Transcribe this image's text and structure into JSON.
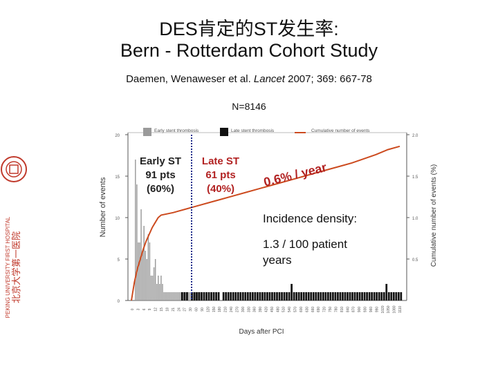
{
  "header": {
    "title_line1": "DES肯定的ST发生率:",
    "title_line2": "Bern - Rotterdam Cohort Study",
    "citation_authors": "Daemen, Wenaweser et al. ",
    "citation_journal": "Lancet",
    "citation_rest": " 2007; 369: 667-78",
    "n_label": "N=8146"
  },
  "sidebar": {
    "logo": "peking-university-seal",
    "vertical_text": "PEKING UNIVERSITY FIRST HOSPITAL",
    "vertical_chinese": "北京大学第一医院"
  },
  "annotations": {
    "early_st": [
      "Early ST",
      "91 pts",
      "(60%)"
    ],
    "late_st": [
      "Late ST",
      "61 pts",
      "(40%)"
    ],
    "rate": "0.6% / year",
    "incidence_title": "Incidence density:",
    "incidence_value_1": "1.3 / 100 patient",
    "incidence_value_2": "years"
  },
  "colors": {
    "early_bar": "#9a9a9a",
    "late_bar": "#111111",
    "cumulative_line": "#cc4a1e",
    "annotation_red": "#b22222",
    "dotted_divider": "#1a2a8a",
    "chart_text": "#555555"
  },
  "chart_data": {
    "type": "bar",
    "legend": [
      "Early stent thrombosis",
      "Late stent thrombosis",
      "Cumulative number of events"
    ],
    "legend_placement": "top",
    "ylabel": "Number of events",
    "y2label": "Cumulative number of events (%)",
    "xlabel": "Days after PCI",
    "ylim": [
      0,
      20
    ],
    "y2lim": [
      0,
      2.0
    ],
    "y_ticks": [
      "0",
      "5",
      "10",
      "15",
      "20"
    ],
    "y2_ticks": [
      "0.5",
      "1.0",
      "1.5",
      "2.0"
    ],
    "x_tick_labels": [
      "0",
      "3",
      "6",
      "9",
      "12",
      "15",
      "18",
      "21",
      "24",
      "27",
      "30",
      "60",
      "90",
      "120",
      "150",
      "180",
      "210",
      "240",
      "270",
      "300",
      "330",
      "360",
      "390",
      "420",
      "450",
      "480",
      "510",
      "540",
      "570",
      "600",
      "630",
      "660",
      "690",
      "720",
      "750",
      "780",
      "810",
      "840",
      "870",
      "900",
      "930",
      "960",
      "990",
      "1020",
      "1050",
      "1080",
      "1110"
    ],
    "early_values": [
      0,
      17,
      14,
      7,
      7,
      11,
      6,
      9,
      6,
      5,
      8,
      7,
      3,
      3,
      4,
      5,
      2,
      3,
      2,
      3,
      2,
      1,
      1,
      1,
      1,
      1,
      1,
      1,
      1,
      1,
      1,
      1,
      1,
      1,
      1,
      1,
      1,
      1,
      1,
      1,
      1,
      1,
      1,
      1,
      1,
      1,
      1,
      1
    ],
    "late_values": [
      1,
      1,
      1,
      0,
      1,
      1,
      1,
      1,
      1,
      1,
      1,
      1,
      1,
      1,
      1,
      1,
      0,
      1,
      1,
      1,
      1,
      1,
      1,
      1,
      1,
      1,
      1,
      1,
      1,
      1,
      1,
      1,
      1,
      1,
      1,
      1,
      1,
      1,
      1,
      1,
      1,
      1,
      1,
      1,
      1,
      2,
      1,
      1,
      1,
      1,
      1,
      1,
      1,
      1,
      1,
      1,
      1,
      1,
      1,
      1,
      1,
      1,
      1,
      1,
      1,
      1,
      1,
      1,
      1,
      1,
      1,
      1,
      1,
      1,
      1,
      1,
      1,
      1,
      1,
      1,
      1,
      1,
      1,
      1,
      2,
      1,
      1,
      1,
      1,
      1,
      1
    ],
    "cumulative_percent": [
      0,
      0.22,
      0.38,
      0.5,
      0.62,
      0.72,
      0.8,
      0.88,
      0.94,
      1.0,
      1.03,
      1.06,
      1.1,
      1.14,
      1.18,
      1.22,
      1.26,
      1.3,
      1.34,
      1.38,
      1.42,
      1.46,
      1.5,
      1.54,
      1.58,
      1.62,
      1.66,
      1.71,
      1.76,
      1.82,
      1.86
    ],
    "grid": false
  }
}
